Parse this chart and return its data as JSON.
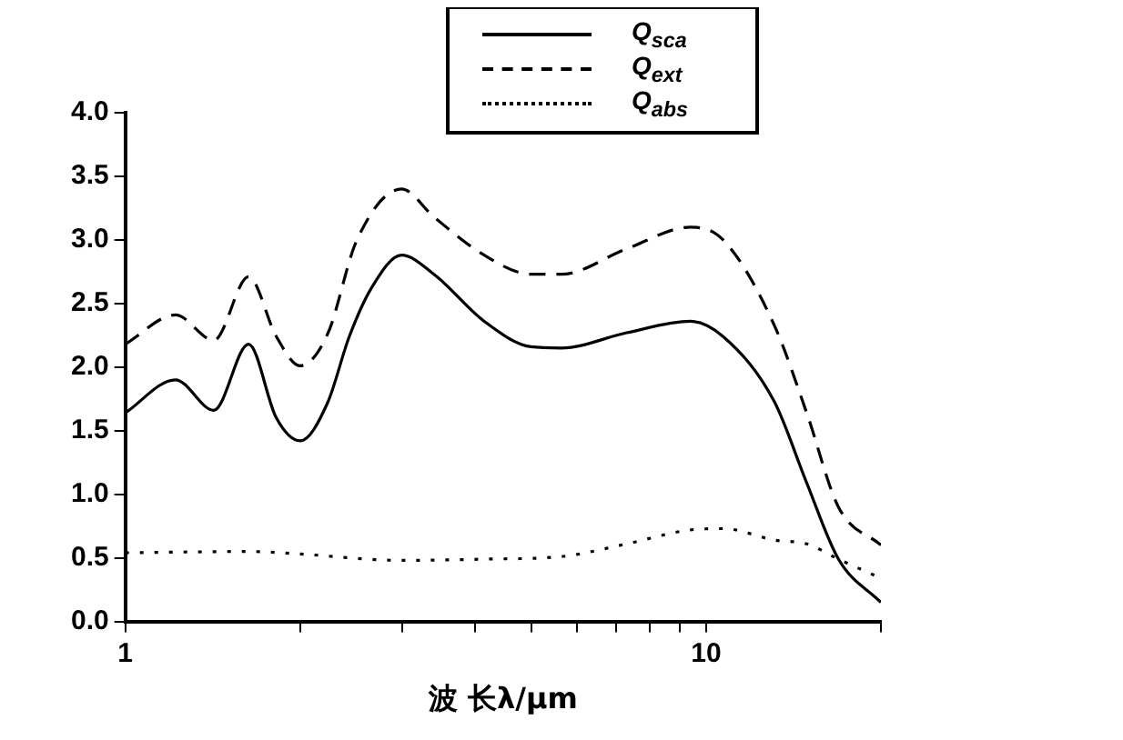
{
  "chart_data": {
    "type": "line",
    "xlabel": "波 长λ/μm",
    "log": "x",
    "xlim": [
      1,
      20
    ],
    "ylim": [
      0,
      4
    ],
    "xticks": [
      1,
      {
        "value": 2,
        "label": null
      },
      {
        "value": 3,
        "label": null
      },
      {
        "value": 4,
        "label": null
      },
      {
        "value": 5,
        "label": null
      },
      {
        "value": 6,
        "label": null
      },
      {
        "value": 7,
        "label": null
      },
      {
        "value": 8,
        "label": null
      },
      {
        "value": 9,
        "label": null
      },
      10,
      {
        "value": 20,
        "label": null
      }
    ],
    "yticks": [
      {
        "value": 0,
        "label": "0.0"
      },
      {
        "value": 0.5,
        "label": "0.5"
      },
      {
        "value": 1,
        "label": "1.0"
      },
      {
        "value": 1.5,
        "label": "1.5"
      },
      {
        "value": 2,
        "label": "2.0"
      },
      {
        "value": 2.5,
        "label": "2.5"
      },
      {
        "value": 3,
        "label": "3.0"
      },
      {
        "value": 3.5,
        "label": "3.5"
      },
      {
        "value": 4,
        "label": "4.0"
      }
    ],
    "grid": false,
    "legend": "top",
    "marker": "none",
    "series": [
      {
        "name": "Q$_{sca}$",
        "color": "#000000",
        "line_style": "solid",
        "x": [
          1,
          1.22,
          1.42,
          1.63,
          1.82,
          2,
          2.23,
          2.43,
          2.66,
          2.99,
          3.4,
          4.15,
          4.99,
          5.63,
          7.3,
          9.4,
          10.7,
          13.1,
          14.9,
          16.9,
          20
        ],
        "values": [
          1.64,
          1.9,
          1.66,
          2.18,
          1.6,
          1.42,
          1.72,
          2.24,
          2.63,
          2.88,
          2.73,
          2.36,
          2.16,
          2.15,
          2.27,
          2.36,
          2.24,
          1.73,
          1.09,
          0.49,
          0.15
        ]
      },
      {
        "name": "Q$_{ext}$",
        "color": "#000000",
        "line_style": "dashed",
        "x": [
          1,
          1.22,
          1.42,
          1.63,
          1.82,
          2,
          2.23,
          2.5,
          2.99,
          3.4,
          4.15,
          4.99,
          5.63,
          7.3,
          9.4,
          10.7,
          13.1,
          14.9,
          16.9,
          20
        ],
        "values": [
          2.18,
          2.41,
          2.21,
          2.71,
          2.24,
          2.01,
          2.26,
          2.99,
          3.4,
          3.18,
          2.88,
          2.73,
          2.73,
          2.93,
          3.1,
          3.0,
          2.33,
          1.64,
          0.9,
          0.6
        ]
      },
      {
        "name": "Q$_{abs}$",
        "color": "#000000",
        "line_style": "dotted",
        "x": [
          1,
          1.63,
          2,
          3,
          4.15,
          5.63,
          7.3,
          9.4,
          10.7,
          13.1,
          14.9,
          16.9,
          20
        ],
        "values": [
          0.54,
          0.55,
          0.53,
          0.48,
          0.49,
          0.51,
          0.61,
          0.72,
          0.73,
          0.64,
          0.61,
          0.49,
          0.34
        ]
      }
    ]
  }
}
